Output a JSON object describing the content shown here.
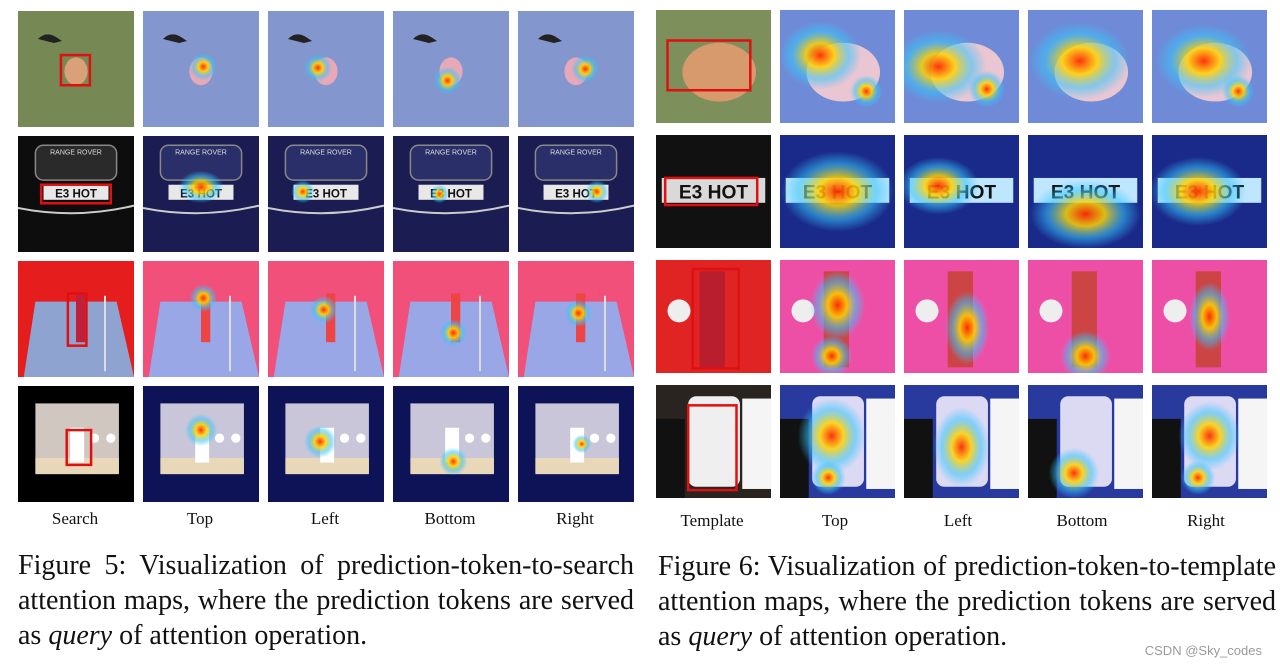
{
  "figure5": {
    "columns": [
      "Search",
      "Top",
      "Left",
      "Bottom",
      "Right"
    ],
    "caption_prefix": "Figure 5:  Visualization of prediction-token-to-search attention maps, where the prediction tokens are served as ",
    "caption_query": "query",
    "caption_suffix": " of attention operation."
  },
  "figure6": {
    "columns": [
      "Template",
      "Top",
      "Left",
      "Bottom",
      "Right"
    ],
    "caption_prefix": "Figure 6:  Visualization of prediction-token-to-template attention maps, where the prediction tokens are served as ",
    "caption_query": "query",
    "caption_suffix": " of attention operation."
  },
  "plate_text": "E3 HOT",
  "grille_text": "RANGE ROVER",
  "watermark": "CSDN @Sky_codes",
  "colors": {
    "box": "#e01010",
    "grass": "#7d8f5a",
    "heat_base": "#2b2a8f",
    "heat_hot": "#ff2a00",
    "heat_warm": "#ffd400",
    "heat_cool": "#35c6ff"
  }
}
